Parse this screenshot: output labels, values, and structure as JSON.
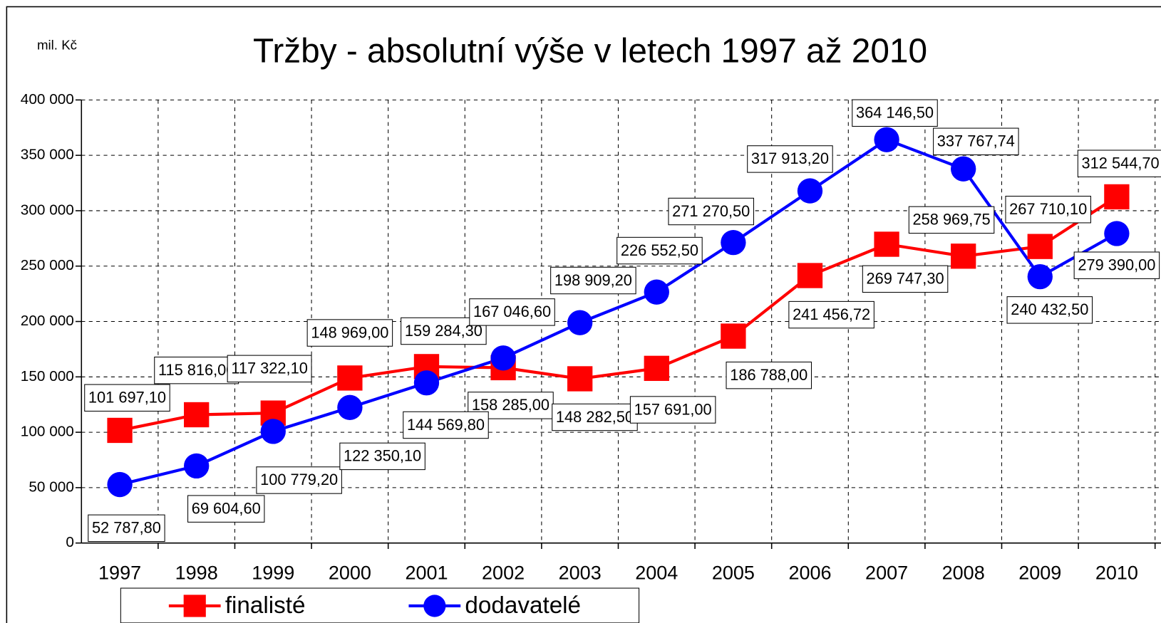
{
  "chart_data": {
    "type": "line",
    "title": "Tržby - absolutní výše v letech 1997 až 2010",
    "y_label": "mil. Kč",
    "categories": [
      "1997",
      "1998",
      "1999",
      "2000",
      "2001",
      "2002",
      "2003",
      "2004",
      "2005",
      "2006",
      "2007",
      "2008",
      "2009",
      "2010"
    ],
    "ylim": [
      0,
      400000
    ],
    "yticks": [
      0,
      {
        "value": 50000,
        "label": "50 000"
      },
      {
        "value": 100000,
        "label": "100 000"
      },
      {
        "value": 150000,
        "label": "150 000"
      },
      {
        "value": 200000,
        "label": "200 000"
      },
      {
        "value": 250000,
        "label": "250 000"
      },
      {
        "value": 300000,
        "label": "300 000"
      },
      {
        "value": 350000,
        "label": "350 000"
      },
      {
        "value": 400000,
        "label": "400 000"
      }
    ],
    "grid": true,
    "legend": "bottom",
    "series": [
      {
        "name": "finalisté",
        "color": "#ff0000",
        "marker": "square",
        "values": [
          101697.1,
          115816.0,
          117322.1,
          148969.0,
          159284.3,
          158285.0,
          148282.5,
          157691.0,
          186788.0,
          241456.72,
          269747.3,
          258969.75,
          267710.1,
          312544.7
        ],
        "value_labels": [
          "101 697,10",
          "115 816,00",
          "117 322,10",
          "148 969,00",
          "159 284,30",
          "158 285,00",
          "148 282,50",
          "157 691,00",
          "186 788,00",
          "241 456,72",
          "269 747,30",
          "258 969,75",
          "267 710,10",
          "312 544,70"
        ]
      },
      {
        "name": "dodavatelé",
        "color": "#0000ff",
        "marker": "circle",
        "values": [
          52787.8,
          69604.6,
          100779.2,
          122350.1,
          144569.8,
          167046.6,
          198909.2,
          226552.5,
          271270.5,
          317913.2,
          364146.5,
          337767.74,
          240432.5,
          279390.0
        ],
        "value_labels": [
          "52 787,80",
          "69 604,60",
          "100 779,20",
          "122 350,10",
          "144 569,80",
          "167 046,60",
          "198 909,20",
          "226 552,50",
          "271 270,50",
          "317 913,20",
          "364 146,50",
          "337 767,74",
          "240 432,50",
          "279 390,00"
        ]
      }
    ]
  }
}
